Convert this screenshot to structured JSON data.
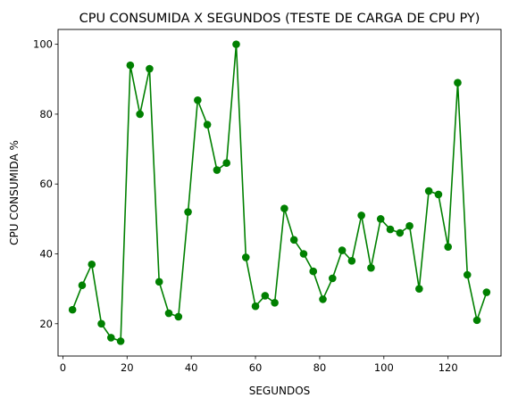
{
  "chart_data": {
    "type": "line",
    "title": "CPU CONSUMIDA X SEGUNDOS (TESTE DE CARGA DE CPU PY)",
    "xlabel": "SEGUNDOS",
    "ylabel": "CPU CONSUMIDA %",
    "xlim": [
      -1.5,
      136.5
    ],
    "ylim": [
      10.75,
      104.25
    ],
    "x_ticks": [
      0,
      20,
      40,
      60,
      80,
      100,
      120
    ],
    "y_ticks": [
      20,
      40,
      60,
      80,
      100
    ],
    "grid": false,
    "series": [
      {
        "color": "#008000",
        "marker": "circle",
        "x": [
          3,
          6,
          9,
          12,
          15,
          18,
          21,
          24,
          27,
          30,
          33,
          36,
          39,
          42,
          45,
          48,
          51,
          54,
          57,
          60,
          63,
          66,
          69,
          72,
          75,
          78,
          81,
          84,
          87,
          90,
          93,
          96,
          99,
          102,
          105,
          108,
          111,
          114,
          117,
          120,
          123,
          126,
          129,
          132
        ],
        "y": [
          24,
          31,
          37,
          20,
          16,
          15,
          94,
          80,
          93,
          32,
          23,
          22,
          52,
          84,
          77,
          64,
          66,
          100,
          39,
          25,
          28,
          26,
          53,
          44,
          40,
          35,
          27,
          33,
          41,
          38,
          51,
          36,
          50,
          47,
          46,
          48,
          30,
          58,
          57,
          42,
          89,
          34,
          21,
          29
        ]
      }
    ]
  }
}
